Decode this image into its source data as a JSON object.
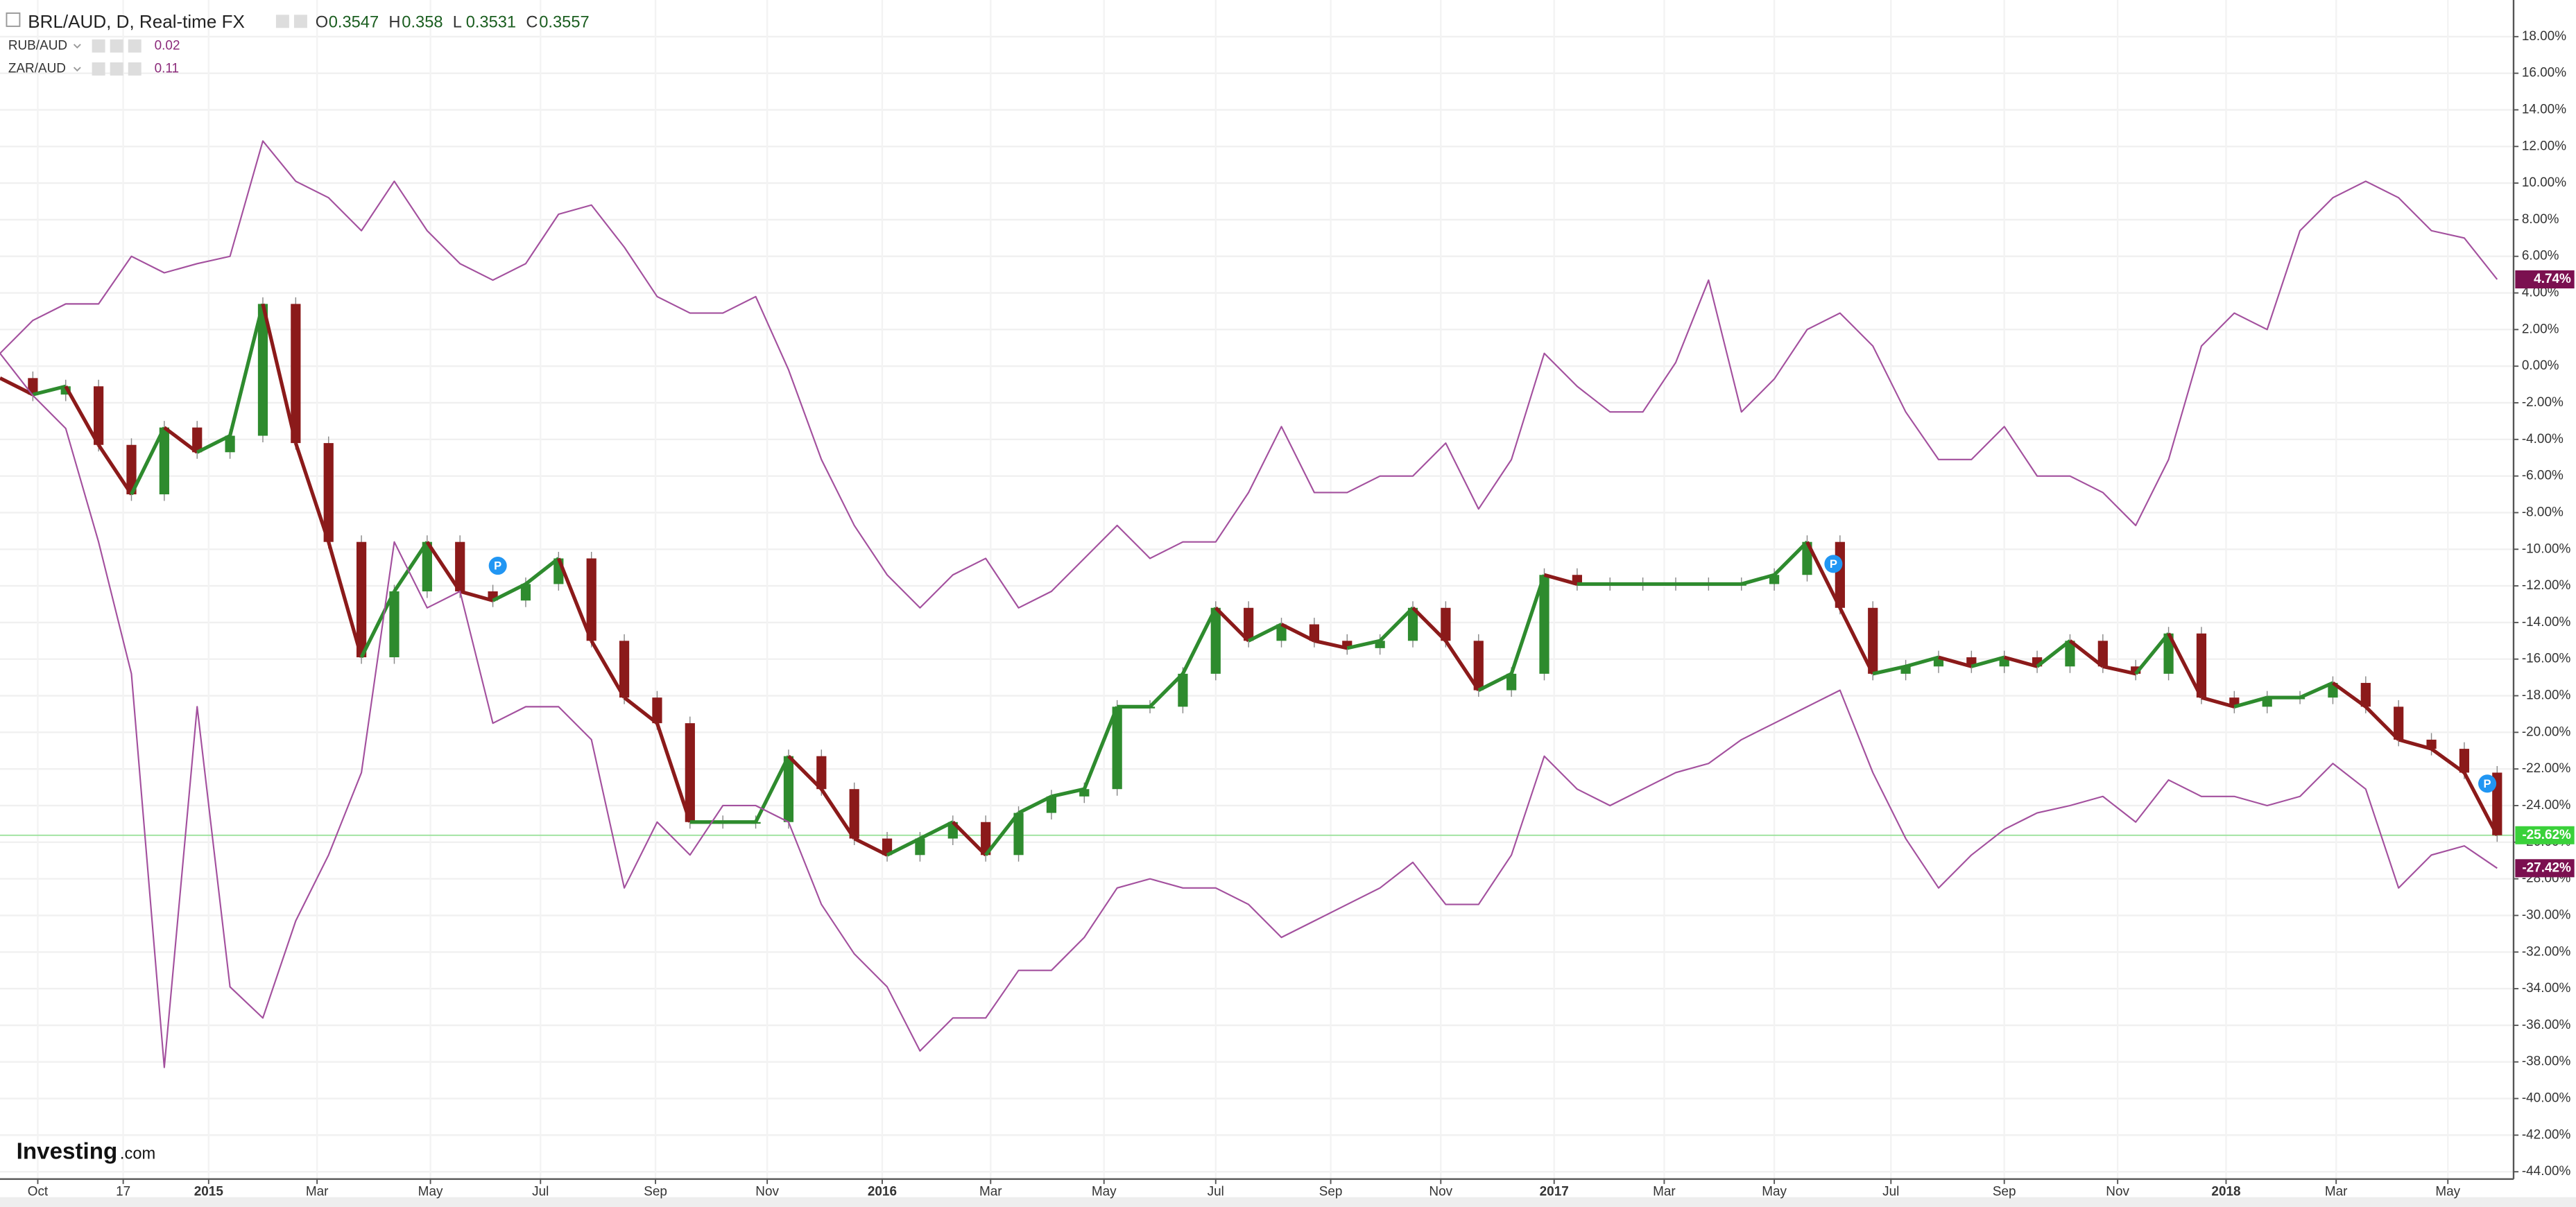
{
  "chart_data": {
    "type": "line",
    "title": "BRL/AUD, D, Real-time FX",
    "ohlc": [
      {
        "label": "O",
        "value": 0.3547
      },
      {
        "label": "H",
        "value": 0.358
      },
      {
        "label": "L",
        "value": 0.3531
      },
      {
        "label": "C",
        "value": 0.3557
      }
    ],
    "watermark": {
      "brand": "Investing",
      "suffix": ".com"
    },
    "xlim": [
      0,
      76.5
    ],
    "ylim": [
      -44.4,
      20
    ],
    "grid": true,
    "x": [
      0,
      1,
      2,
      3,
      4,
      5,
      6,
      7,
      8,
      9,
      10,
      11,
      12,
      13,
      14,
      15,
      16,
      17,
      18,
      19,
      20,
      21,
      22,
      23,
      24,
      25,
      26,
      27,
      28,
      29,
      30,
      31,
      32,
      33,
      34,
      35,
      36,
      37,
      38,
      39,
      40,
      41,
      42,
      43,
      44,
      45,
      46,
      47,
      48,
      49,
      50,
      51,
      52,
      53,
      54,
      55,
      56,
      57,
      58,
      59,
      60,
      61,
      62,
      63,
      64,
      65,
      66,
      67,
      68,
      69,
      70,
      71,
      72,
      73,
      74,
      75,
      76
    ],
    "xticks": [
      {
        "value": 1.15,
        "label": "Oct"
      },
      {
        "value": 3.75,
        "label": "17"
      },
      {
        "value": 6.35,
        "label": "2015"
      },
      {
        "value": 9.65,
        "label": "Mar"
      },
      {
        "value": 13.1,
        "label": "May"
      },
      {
        "value": 16.45,
        "label": "Jul"
      },
      {
        "value": 19.95,
        "label": "Sep"
      },
      {
        "value": 23.35,
        "label": "Nov"
      },
      {
        "value": 26.85,
        "label": "2016"
      },
      {
        "value": 30.15,
        "label": "Mar"
      },
      {
        "value": 33.6,
        "label": "May"
      },
      {
        "value": 37,
        "label": "Jul"
      },
      {
        "value": 40.5,
        "label": "Sep"
      },
      {
        "value": 43.85,
        "label": "Nov"
      },
      {
        "value": 47.3,
        "label": "2017"
      },
      {
        "value": 50.65,
        "label": "Mar"
      },
      {
        "value": 54,
        "label": "May"
      },
      {
        "value": 57.55,
        "label": "Jul"
      },
      {
        "value": 61,
        "label": "Sep"
      },
      {
        "value": 64.45,
        "label": "Nov"
      },
      {
        "value": 67.75,
        "label": "2018"
      },
      {
        "value": 71.1,
        "label": "Mar"
      },
      {
        "value": 74.5,
        "label": "May"
      }
    ],
    "yticks": [
      {
        "value": 18,
        "label": "18.00%"
      },
      {
        "value": 16,
        "label": "16.00%"
      },
      {
        "value": 14,
        "label": "14.00%"
      },
      {
        "value": 12,
        "label": "12.00%"
      },
      {
        "value": 10,
        "label": "10.00%"
      },
      {
        "value": 8,
        "label": "8.00%"
      },
      {
        "value": 6,
        "label": "6.00%"
      },
      {
        "value": 4,
        "label": "4.00%"
      },
      {
        "value": 2,
        "label": "2.00%"
      },
      {
        "value": 0,
        "label": "0.00%"
      },
      {
        "value": -2,
        "label": "-2.00%"
      },
      {
        "value": -4,
        "label": "-4.00%"
      },
      {
        "value": -6,
        "label": "-6.00%"
      },
      {
        "value": -8,
        "label": "-8.00%"
      },
      {
        "value": -10,
        "label": "-10.00%"
      },
      {
        "value": -12,
        "label": "-12.00%"
      },
      {
        "value": -14,
        "label": "-14.00%"
      },
      {
        "value": -16,
        "label": "-16.00%"
      },
      {
        "value": -18,
        "label": "-18.00%"
      },
      {
        "value": -20,
        "label": "-20.00%"
      },
      {
        "value": -22,
        "label": "-22.00%"
      },
      {
        "value": -24,
        "label": "-24.00%"
      },
      {
        "value": -26,
        "label": "-26.00%"
      },
      {
        "value": -28,
        "label": "-28.00%"
      },
      {
        "value": -30,
        "label": "-30.00%"
      },
      {
        "value": -32,
        "label": "-32.00%"
      },
      {
        "value": -34,
        "label": "-34.00%"
      },
      {
        "value": -36,
        "label": "-36.00%"
      },
      {
        "value": -38,
        "label": "-38.00%"
      },
      {
        "value": -40,
        "label": "-40.00%"
      },
      {
        "value": -42,
        "label": "-42.00%"
      },
      {
        "value": -44,
        "label": "-44.00%"
      }
    ],
    "series": [
      {
        "name": "BRL/AUD",
        "kind": "candles",
        "color": "#2e8b2e",
        "down_color": "#8b1a1a",
        "last_value_label": "-25.62%",
        "label_color": "#3ad13a",
        "values": [
          -0.65,
          -1.55,
          -1.1,
          -4.3,
          -7.0,
          -3.35,
          -4.7,
          -3.8,
          3.4,
          -4.2,
          -9.6,
          -15.9,
          -12.3,
          -9.6,
          -12.3,
          -12.8,
          -11.9,
          -10.5,
          -15.0,
          -18.1,
          -19.5,
          -24.9,
          -24.9,
          -24.9,
          -21.3,
          -23.1,
          -25.8,
          -26.7,
          -25.8,
          -24.9,
          -26.7,
          -24.4,
          -23.5,
          -23.1,
          -18.6,
          -18.6,
          -16.8,
          -13.2,
          -15.0,
          -14.1,
          -15.0,
          -15.4,
          -15.0,
          -13.2,
          -15.0,
          -17.7,
          -16.8,
          -11.4,
          -11.9,
          -11.9,
          -11.9,
          -11.9,
          -11.9,
          -11.9,
          -11.4,
          -9.6,
          -13.2,
          -16.8,
          -16.4,
          -15.9,
          -16.4,
          -15.9,
          -16.4,
          -15.0,
          -16.4,
          -16.8,
          -14.6,
          -18.1,
          -18.6,
          -18.1,
          -18.1,
          -17.3,
          -18.6,
          -20.4,
          -20.9,
          -22.2,
          -25.62
        ]
      },
      {
        "name": "RUB/AUD",
        "kind": "line",
        "color": "#a3509e",
        "legend_value": 0.02,
        "last_value_label": "-27.42%",
        "label_color": "#7b1050",
        "values": [
          0.7,
          -1.6,
          -3.4,
          -9.6,
          -16.8,
          -38.3,
          -18.6,
          -33.9,
          -35.6,
          -30.3,
          -26.7,
          -22.2,
          -9.6,
          -13.2,
          -12.3,
          -19.5,
          -18.6,
          -18.6,
          -20.4,
          -28.5,
          -24.9,
          -26.7,
          -24.0,
          -24.0,
          -24.9,
          -29.4,
          -32.1,
          -33.9,
          -37.4,
          -35.6,
          -35.6,
          -33.0,
          -33.0,
          -31.2,
          -28.5,
          -28.0,
          -28.5,
          -28.5,
          -29.4,
          -31.2,
          -30.3,
          -29.4,
          -28.5,
          -27.1,
          -29.4,
          -29.4,
          -26.7,
          -21.3,
          -23.1,
          -24.0,
          -23.1,
          -22.2,
          -21.7,
          -20.4,
          -19.5,
          -18.6,
          -17.7,
          -22.2,
          -25.8,
          -28.5,
          -26.7,
          -25.3,
          -24.4,
          -24.0,
          -23.5,
          -24.9,
          -22.6,
          -23.5,
          -23.5,
          -24.0,
          -23.5,
          -21.7,
          -23.1,
          -28.5,
          -26.7,
          -26.2,
          -27.42
        ]
      },
      {
        "name": "ZAR/AUD",
        "kind": "line",
        "color": "#a3509e",
        "legend_value": 0.11,
        "last_value_label": "4.74%",
        "label_color": "#7b1050",
        "values": [
          0.7,
          2.5,
          3.4,
          3.4,
          6.0,
          5.1,
          5.6,
          6.0,
          12.3,
          10.1,
          9.2,
          7.4,
          10.1,
          7.4,
          5.6,
          4.7,
          5.6,
          8.3,
          8.8,
          6.5,
          3.8,
          2.9,
          2.9,
          3.8,
          -0.2,
          -5.1,
          -8.7,
          -11.4,
          -13.2,
          -11.4,
          -10.5,
          -13.2,
          -12.3,
          -10.5,
          -8.7,
          -10.5,
          -9.6,
          -9.6,
          -6.9,
          -3.3,
          -6.9,
          -6.9,
          -6.0,
          -6.0,
          -4.2,
          -7.8,
          -5.1,
          0.7,
          -1.1,
          -2.5,
          -2.5,
          0.2,
          4.7,
          -2.5,
          -0.7,
          2.0,
          2.9,
          1.1,
          -2.5,
          -5.1,
          -5.1,
          -3.3,
          -6.0,
          -6.0,
          -6.9,
          -8.7,
          -5.1,
          1.1,
          2.9,
          2.0,
          7.4,
          9.2,
          10.1,
          9.2,
          7.4,
          7.0,
          4.74
        ]
      }
    ],
    "markers": [
      {
        "label": "P",
        "x": 15.15,
        "value": -10.9
      },
      {
        "label": "P",
        "x": 55.8,
        "value": -10.8
      },
      {
        "label": "P",
        "x": 75.7,
        "value": -22.8
      }
    ]
  }
}
